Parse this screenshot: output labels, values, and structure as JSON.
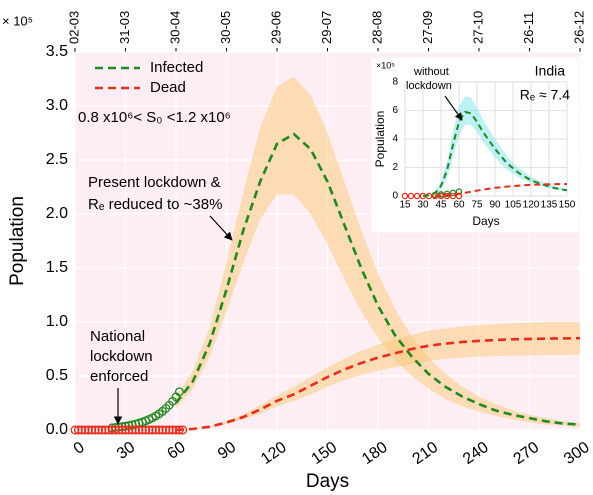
{
  "chart_data": [
    {
      "type": "line",
      "xlabel": "Days",
      "ylabel": "Population",
      "y_multiplier": "× 10⁵",
      "xlim": [
        0,
        300
      ],
      "xticks": [
        0,
        30,
        60,
        90,
        120,
        150,
        180,
        210,
        240,
        270,
        300
      ],
      "x2ticks": [
        {
          "value": 0,
          "label": "02-03"
        },
        {
          "value": 30,
          "label": "31-03"
        },
        {
          "value": 60,
          "label": "30-04"
        },
        {
          "value": 90,
          "label": "30-05"
        },
        {
          "value": 120,
          "label": "29-06"
        },
        {
          "value": 150,
          "label": "29-07"
        },
        {
          "value": 180,
          "label": "28-08"
        },
        {
          "value": 210,
          "label": "27-09"
        },
        {
          "value": 240,
          "label": "27-10"
        },
        {
          "value": 270,
          "label": "26-11"
        },
        {
          "value": 300,
          "label": "26-12"
        }
      ],
      "ylim": [
        0,
        3.5
      ],
      "yticks": [
        {
          "value": 0,
          "label": "0.0"
        },
        0.5,
        {
          "value": 1,
          "label": "1.0"
        },
        1.5,
        {
          "value": 2,
          "label": "2.0"
        },
        2.5,
        {
          "value": 3,
          "label": "3.0"
        },
        3.5
      ],
      "grid": true,
      "legend": "upper left",
      "annotations": [
        "0.8 x10⁶< S₀ <1.2 x10⁶",
        "Present lockdown &",
        "Rₑ reduced to ~38%",
        "National",
        "lockdown",
        "enforced"
      ],
      "series": [
        {
          "name": "Infected",
          "color": "#1e8a1e",
          "band_color": "#fbc877",
          "x": [
            60,
            70,
            80,
            90,
            100,
            110,
            120,
            130,
            140,
            150,
            160,
            170,
            180,
            190,
            200,
            210,
            220,
            230,
            240,
            250,
            260,
            270,
            280,
            290,
            300
          ],
          "values": [
            0.25,
            0.45,
            0.8,
            1.3,
            1.85,
            2.3,
            2.65,
            2.74,
            2.6,
            2.3,
            1.9,
            1.5,
            1.15,
            0.88,
            0.68,
            0.52,
            0.4,
            0.31,
            0.24,
            0.18,
            0.14,
            0.11,
            0.08,
            0.06,
            0.05
          ],
          "upper": [
            0.3,
            0.55,
            0.95,
            1.55,
            2.2,
            2.8,
            3.18,
            3.27,
            3.1,
            2.75,
            2.3,
            1.85,
            1.45,
            1.12,
            0.87,
            0.67,
            0.52,
            0.4,
            0.31,
            0.24,
            0.18,
            0.14,
            0.11,
            0.08,
            0.06
          ],
          "lower": [
            0.2,
            0.38,
            0.68,
            1.1,
            1.55,
            1.95,
            2.18,
            2.18,
            2.0,
            1.72,
            1.4,
            1.1,
            0.85,
            0.65,
            0.5,
            0.38,
            0.29,
            0.22,
            0.17,
            0.13,
            0.1,
            0.07,
            0.05,
            0.04,
            0.03
          ]
        },
        {
          "name": "Dead",
          "color": "#ee2a1a",
          "band_color": "#fbc877",
          "x": [
            60,
            70,
            80,
            90,
            100,
            110,
            120,
            130,
            140,
            150,
            160,
            170,
            180,
            190,
            200,
            210,
            220,
            230,
            240,
            250,
            260,
            270,
            280,
            290,
            300
          ],
          "values": [
            0,
            0.01,
            0.03,
            0.07,
            0.12,
            0.19,
            0.27,
            0.33,
            0.41,
            0.49,
            0.56,
            0.62,
            0.67,
            0.71,
            0.75,
            0.78,
            0.8,
            0.815,
            0.825,
            0.833,
            0.84,
            0.843,
            0.846,
            0.848,
            0.85
          ],
          "upper": [
            0,
            0.012,
            0.036,
            0.084,
            0.145,
            0.23,
            0.32,
            0.4,
            0.49,
            0.58,
            0.66,
            0.73,
            0.79,
            0.84,
            0.88,
            0.92,
            0.94,
            0.96,
            0.97,
            0.98,
            0.99,
            0.995,
            1.0,
            1.0,
            1.0
          ],
          "lower": [
            0,
            0.008,
            0.024,
            0.056,
            0.1,
            0.15,
            0.22,
            0.27,
            0.33,
            0.4,
            0.46,
            0.51,
            0.55,
            0.58,
            0.61,
            0.64,
            0.66,
            0.67,
            0.68,
            0.685,
            0.69,
            0.69,
            0.695,
            0.695,
            0.7
          ]
        }
      ],
      "markers": [
        {
          "color": "#1e8a1e",
          "x": [
            22,
            24,
            26,
            28,
            30,
            32,
            34,
            36,
            38,
            40,
            42,
            44,
            46,
            48,
            50,
            52,
            54,
            56,
            58,
            60,
            62
          ],
          "values": [
            0.02,
            0.024,
            0.027,
            0.031,
            0.036,
            0.041,
            0.048,
            0.055,
            0.064,
            0.073,
            0.085,
            0.098,
            0.113,
            0.13,
            0.15,
            0.173,
            0.2,
            0.23,
            0.266,
            0.307,
            0.354
          ]
        },
        {
          "color": "#ee2a1a",
          "x": [
            0,
            2,
            4,
            6,
            8,
            10,
            12,
            14,
            16,
            18,
            20,
            22,
            24,
            26,
            28,
            30,
            32,
            34,
            36,
            38,
            40,
            42,
            44,
            46,
            48,
            50,
            52,
            54,
            56,
            58,
            60,
            62,
            64
          ],
          "values": [
            0,
            0,
            0,
            0,
            0,
            0,
            0,
            0,
            0,
            0,
            0,
            0,
            0,
            0,
            0,
            0,
            0,
            0,
            0,
            0,
            0,
            0,
            0,
            0,
            0,
            0,
            0,
            0,
            0,
            0,
            0,
            0,
            0
          ]
        }
      ]
    },
    {
      "type": "line",
      "xlabel": "Days",
      "ylabel": "Population",
      "y_multiplier": "×10⁵",
      "title": "India",
      "annotations": [
        "Rₑ ≈ 7.4",
        "without",
        "lockdown"
      ],
      "xlim": [
        15,
        150
      ],
      "xticks": [
        15,
        30,
        45,
        60,
        75,
        90,
        105,
        120,
        135,
        150
      ],
      "ylim": [
        0,
        8
      ],
      "yticks": [
        0,
        2,
        4,
        6,
        8
      ],
      "grid": true,
      "series": [
        {
          "color": "#1e8a1e",
          "band_color": "#7fe6ee",
          "x": [
            30,
            35,
            40,
            45,
            50,
            55,
            60,
            65,
            70,
            75,
            80,
            90,
            100,
            110,
            120,
            130,
            140,
            150
          ],
          "values": [
            0,
            0.05,
            0.2,
            0.7,
            1.8,
            3.6,
            5.2,
            5.9,
            5.8,
            5.2,
            4.5,
            3.3,
            2.3,
            1.6,
            1.1,
            0.8,
            0.55,
            0.4
          ],
          "upper": [
            0,
            0.07,
            0.3,
            1.0,
            2.4,
            4.5,
            6.3,
            7.0,
            6.9,
            6.2,
            5.4,
            4.0,
            2.8,
            1.95,
            1.35,
            0.98,
            0.68,
            0.5
          ],
          "lower": [
            0,
            0.03,
            0.13,
            0.45,
            1.2,
            2.7,
            4.2,
            5.0,
            5.0,
            4.5,
            3.8,
            2.7,
            1.85,
            1.3,
            0.9,
            0.65,
            0.45,
            0.32
          ]
        },
        {
          "color": "#ee2a1a",
          "x": [
            40,
            50,
            60,
            70,
            80,
            90,
            100,
            110,
            120,
            130,
            140,
            150
          ],
          "values": [
            0,
            0.05,
            0.15,
            0.3,
            0.45,
            0.57,
            0.66,
            0.73,
            0.78,
            0.81,
            0.83,
            0.84
          ]
        }
      ],
      "markers": [
        {
          "color": "#1e8a1e",
          "x": [
            40,
            45,
            50,
            55,
            60
          ],
          "values": [
            0.073,
            0.11,
            0.15,
            0.22,
            0.31
          ]
        },
        {
          "color": "#ee2a1a",
          "x": [
            15,
            20,
            25,
            30,
            35,
            40,
            45,
            50,
            55,
            60
          ],
          "values": [
            0,
            0,
            0,
            0,
            0,
            0,
            0,
            0,
            0,
            0
          ]
        }
      ]
    }
  ]
}
